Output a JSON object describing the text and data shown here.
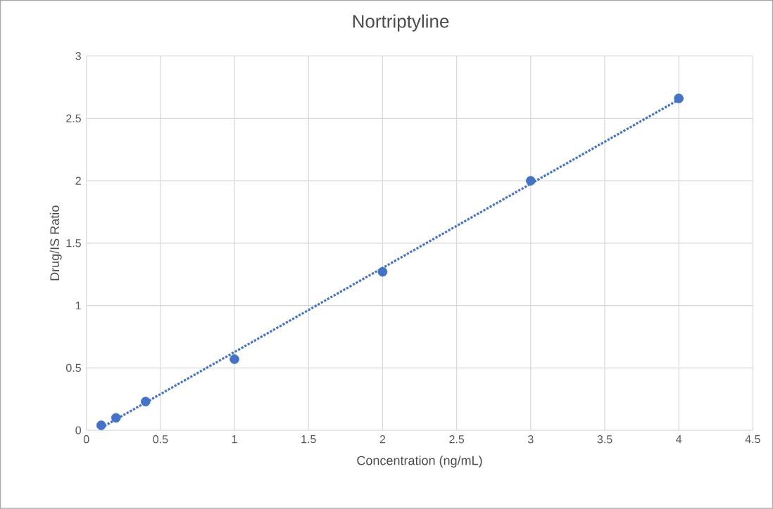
{
  "chart_data": {
    "type": "scatter",
    "title": "Nortriptyline",
    "xlabel": "Concentration (ng/mL)",
    "ylabel": "Drug/IS Ratio",
    "series": [
      {
        "color": "#4472c4",
        "marker": "circle",
        "x": [
          0.1,
          0.2,
          0.4,
          1,
          2,
          3,
          4
        ],
        "values": [
          0.04,
          0.1,
          0.23,
          0.57,
          1.27,
          2.0,
          2.66
        ]
      },
      {
        "type": "line",
        "color": "#4472c4",
        "line_style": "dotted",
        "marker": "none",
        "x": [
          0.1,
          4
        ],
        "values": [
          0.02,
          2.65
        ]
      }
    ],
    "xlim": [
      0,
      4.5
    ],
    "ylim": [
      0,
      3
    ],
    "xticks": [
      0,
      0.5,
      1,
      1.5,
      2,
      2.5,
      3,
      3.5,
      4,
      4.5
    ],
    "yticks": [
      0,
      0.5,
      1,
      1.5,
      2,
      2.5,
      3
    ],
    "grid": true
  }
}
